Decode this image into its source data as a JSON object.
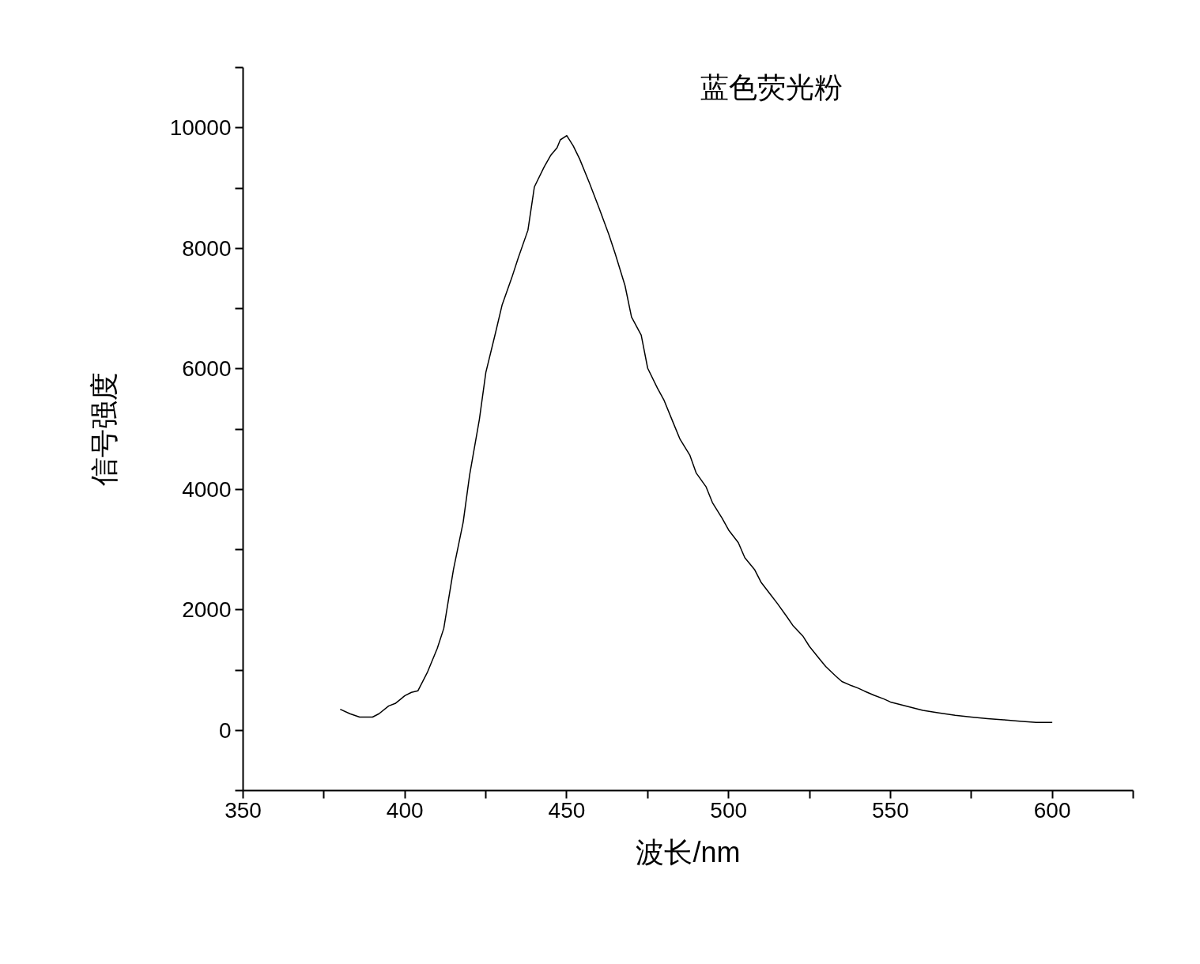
{
  "chart_data": {
    "type": "line",
    "title": "蓝色荧光粉",
    "xlabel": "波长/nm",
    "ylabel": "信号强度",
    "xlim": [
      350,
      625
    ],
    "ylim": [
      -1000,
      11000
    ],
    "xticks": [
      350,
      {
        "value": 375,
        "label": null
      },
      400,
      {
        "value": 425,
        "label": null
      },
      450,
      {
        "value": 475,
        "label": null
      },
      500,
      {
        "value": 525,
        "label": null
      },
      550,
      {
        "value": 575,
        "label": null
      },
      600,
      {
        "value": 625,
        "label": null
      }
    ],
    "yticks": [
      {
        "value": -1000,
        "label": null
      },
      0,
      {
        "value": 1000,
        "label": null
      },
      2000,
      {
        "value": 3000,
        "label": null
      },
      4000,
      {
        "value": 5000,
        "label": null
      },
      6000,
      {
        "value": 7000,
        "label": null
      },
      8000,
      {
        "value": 9000,
        "label": null
      },
      10000,
      {
        "value": 11000,
        "label": null
      }
    ],
    "grid": false,
    "marker": "none",
    "line_style": "solid",
    "x": [
      380,
      383,
      386,
      390,
      392,
      395,
      397,
      400,
      402,
      404,
      405,
      407,
      410,
      412,
      415,
      418,
      420,
      423,
      425,
      428,
      430,
      433,
      435,
      438,
      440,
      443,
      445,
      447,
      448,
      450,
      452,
      454,
      457,
      460,
      463,
      465,
      468,
      470,
      473,
      475,
      478,
      480,
      483,
      485,
      488,
      490,
      493,
      495,
      498,
      500,
      503,
      505,
      508,
      510,
      513,
      515,
      518,
      520,
      523,
      525,
      528,
      530,
      533,
      535,
      538,
      540,
      542,
      545,
      548,
      550,
      555,
      560,
      565,
      570,
      575,
      580,
      585,
      590,
      595,
      600
    ],
    "series": [
      {
        "color": "#000000",
        "values": [
          350,
          275,
          220,
          220,
          275,
          405,
          445,
          575,
          630,
          655,
          760,
          970,
          1360,
          1690,
          2670,
          3455,
          4240,
          5160,
          5940,
          6600,
          7055,
          7510,
          7840,
          8300,
          9020,
          9350,
          9540,
          9670,
          9800,
          9870,
          9700,
          9480,
          9085,
          8665,
          8230,
          7905,
          7380,
          6860,
          6560,
          6010,
          5680,
          5485,
          5090,
          4830,
          4570,
          4270,
          4045,
          3780,
          3520,
          3325,
          3115,
          2865,
          2670,
          2460,
          2250,
          2110,
          1885,
          1730,
          1560,
          1390,
          1190,
          1060,
          905,
          810,
          740,
          700,
          650,
          580,
          520,
          470,
          400,
          330,
          290,
          250,
          220,
          195,
          175,
          150,
          130,
          130
        ]
      }
    ]
  }
}
